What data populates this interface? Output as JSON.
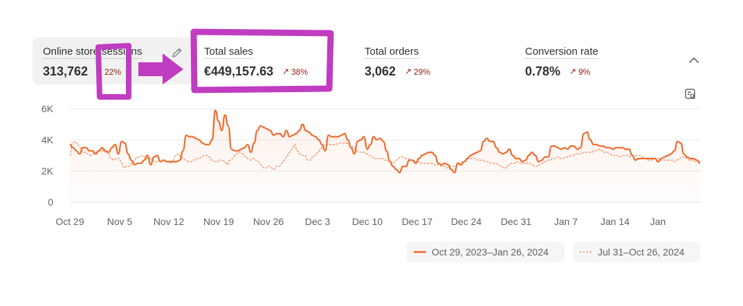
{
  "metrics": [
    {
      "label": "Online store sessions",
      "value": "313,762",
      "change": "22%"
    },
    {
      "label": "Total sales",
      "value": "€449,157.63",
      "change": "38%"
    },
    {
      "label": "Total orders",
      "value": "3,062",
      "change": "29%"
    },
    {
      "label": "Conversion rate",
      "value": "0.78%",
      "change": "9%"
    }
  ],
  "icons": {
    "edit": "pencil-icon",
    "collapse": "chevron-up-icon",
    "analyze": "analyze-icon",
    "trend": "arrow-up-right-icon"
  },
  "colors": {
    "primary_series": "#ee6a2c",
    "comparison_series": "#f0a07a",
    "change_text": "#8e1f0b",
    "annotation": "#c03cc0"
  },
  "chart_data": {
    "type": "line",
    "ylim": [
      0,
      6000
    ],
    "y_ticks": [
      "0",
      "2K",
      "4K",
      "6K"
    ],
    "x_tick_labels": [
      "Oct 29",
      "Nov 5",
      "Nov 12",
      "Nov 19",
      "Nov 26",
      "Dec 3",
      "Dec 10",
      "Dec 17",
      "Dec 24",
      "Dec 31",
      "Jan 7",
      "Jan 14",
      "Jan"
    ],
    "grid": true,
    "legend_position": "bottom-right",
    "series": [
      {
        "name": "Oct 29, 2023–Jan 26, 2024",
        "style": "solid",
        "values": [
          3700,
          3500,
          3300,
          3100,
          3500,
          3500,
          3300,
          3300,
          3100,
          3300,
          3500,
          3300,
          3200,
          3500,
          3700,
          3100,
          3900,
          3800,
          3100,
          2700,
          2400,
          2500,
          2500,
          2700,
          3000,
          2400,
          2900,
          3000,
          2600,
          2700,
          2600,
          2600,
          2600,
          2600,
          2700,
          3300,
          4300,
          4200,
          4200,
          4100,
          4000,
          3800,
          3700,
          3700,
          4000,
          5900,
          5200,
          4600,
          5600,
          4900,
          3400,
          3300,
          3300,
          3400,
          3500,
          3700,
          3200,
          3800,
          4600,
          4900,
          4800,
          4700,
          4600,
          4300,
          4400,
          4400,
          4200,
          4600,
          4200,
          4300,
          4400,
          4600,
          5000,
          4600,
          4500,
          4300,
          4200,
          4000,
          3700,
          3300,
          4300,
          4200,
          4200,
          4200,
          4300,
          4400,
          4000,
          3500,
          3100,
          3900,
          4000,
          4200,
          3400,
          3700,
          4200,
          4000,
          4100,
          3900,
          3300,
          2600,
          2300,
          2100,
          1900,
          2300,
          2300,
          2700,
          2700,
          2500,
          2800,
          3000,
          3100,
          3200,
          3200,
          3000,
          2500,
          2400,
          2500,
          2400,
          2100,
          1900,
          2500,
          2400,
          2600,
          2800,
          3000,
          3100,
          3200,
          3300,
          3900,
          4100,
          3900,
          3900,
          3500,
          3200,
          3100,
          3200,
          3400,
          3000,
          2800,
          2800,
          2600,
          2700,
          3000,
          3200,
          3000,
          2600,
          2700,
          2900,
          2900,
          3600,
          3600,
          3500,
          3400,
          3500,
          3400,
          3600,
          3600,
          3400,
          3500,
          4400,
          4500,
          4000,
          3700,
          3700,
          3600,
          3600,
          3500,
          3500,
          3400,
          3500,
          3500,
          3500,
          3400,
          3400,
          3000,
          2700,
          2800,
          2800,
          2800,
          2800,
          2800,
          2800,
          2600,
          2800,
          2900,
          3000,
          3100,
          3300,
          3900,
          3800,
          3100,
          2900,
          2800,
          2800,
          2700,
          2500
        ]
      },
      {
        "name": "Jul 31–Oct 26, 2024",
        "style": "dotted",
        "values": [
          3000,
          3800,
          3900,
          3700,
          3500,
          3200,
          3200,
          3100,
          3000,
          3100,
          3200,
          3300,
          3300,
          3300,
          3200,
          3100,
          2800,
          2700,
          2800,
          2800,
          2500,
          2200,
          2300,
          2300,
          2500,
          2700,
          2900,
          2900,
          3000,
          2900,
          2800,
          2800,
          2700,
          2600,
          2600,
          2600,
          2700,
          2600,
          2600,
          2500,
          2700,
          3000,
          3100,
          2900,
          2800,
          2700,
          2600,
          2600,
          2700,
          2800,
          2800,
          2900,
          3000,
          3000,
          2900,
          2700,
          2600,
          2600,
          2700,
          2700,
          2600,
          2400,
          2700,
          2800,
          3000,
          3200,
          3200,
          3100,
          2900,
          2800,
          2700,
          2800,
          2700,
          2600,
          2400,
          2200,
          2200,
          2300,
          2200,
          2100,
          2300,
          2300,
          2500,
          2700,
          2900,
          3200,
          3400,
          3700,
          3300,
          3100,
          3000,
          3000,
          2700,
          2700,
          2900,
          3000,
          3200,
          3400,
          3600,
          3700,
          3700,
          3700,
          3700,
          3700,
          3800,
          3800,
          3800,
          3800,
          3700,
          3600,
          3500,
          3300,
          3200,
          3200,
          3200,
          3100,
          3000,
          2900,
          2800,
          2800,
          2800,
          2800,
          2700,
          2700,
          2600,
          2500,
          2600,
          2800,
          2900,
          2900,
          2800,
          2800,
          2700,
          2700,
          2600,
          2600,
          2500,
          2500,
          2500,
          2500,
          2500,
          2400,
          2400,
          2400,
          2300,
          2300,
          2200,
          2300,
          2300,
          2300,
          2400,
          2500,
          2600,
          2600,
          2800,
          2800,
          2800,
          2800,
          2700,
          2700,
          2700,
          2600,
          2600,
          2500,
          2500,
          2500,
          2400,
          2300,
          2200,
          2200,
          2400,
          2500,
          2500,
          2600,
          2500,
          2500,
          2500,
          2500,
          2500,
          2400,
          2300,
          2300,
          2400,
          2500,
          2600,
          2700,
          2700,
          2800,
          2800,
          2900,
          2800,
          2800,
          2900,
          2900,
          3000,
          3000,
          3100,
          3100,
          3100,
          3200,
          3200,
          3200,
          3200,
          3300,
          3300,
          3400,
          3300,
          3200,
          3200,
          3100,
          3000,
          3000,
          3000,
          2900,
          3000,
          3000,
          3000,
          2900,
          3000,
          3000,
          3000,
          3000,
          2900,
          2800,
          2700,
          2700,
          2800,
          2800,
          2800,
          2700,
          2700,
          2700,
          2700,
          2700,
          2600,
          2700,
          2800,
          2900,
          2900,
          2800,
          2700,
          2700,
          2600,
          2600,
          2600
        ]
      }
    ]
  }
}
